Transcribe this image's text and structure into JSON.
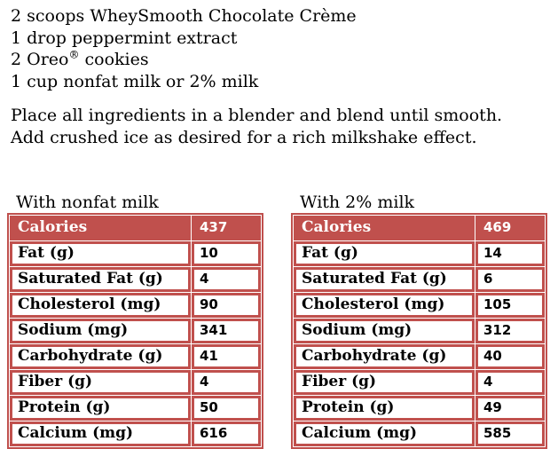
{
  "recipe": {
    "ingredients": [
      "2 scoops WheySmooth Chocolate Crème",
      "1 drop peppermint extract",
      {
        "pre": "2 Oreo",
        "sup": "®",
        "post": " cookies"
      },
      "1 cup nonfat milk or 2% milk"
    ],
    "instructions": [
      "Place all ingredients in a blender and blend until smooth.",
      "Add crushed ice as desired for a rich milkshake effect."
    ]
  },
  "tables": [
    {
      "title": "With nonfat milk",
      "header": {
        "label": "Calories",
        "value": "437"
      },
      "rows": [
        {
          "label": "Fat (g)",
          "value": "10"
        },
        {
          "label": "Saturated Fat (g)",
          "value": "4"
        },
        {
          "label": "Cholesterol (mg)",
          "value": "90"
        },
        {
          "label": "Sodium (mg)",
          "value": "341"
        },
        {
          "label": "Carbohydrate (g)",
          "value": "41"
        },
        {
          "label": "Fiber (g)",
          "value": "4"
        },
        {
          "label": "Protein (g)",
          "value": "50"
        },
        {
          "label": "Calcium (mg)",
          "value": "616"
        }
      ]
    },
    {
      "title": "With 2% milk",
      "header": {
        "label": "Calories",
        "value": "469"
      },
      "rows": [
        {
          "label": "Fat (g)",
          "value": "14"
        },
        {
          "label": "Saturated Fat (g)",
          "value": "6"
        },
        {
          "label": "Cholesterol (mg)",
          "value": "105"
        },
        {
          "label": "Sodium (mg)",
          "value": "312"
        },
        {
          "label": "Carbohydrate (g)",
          "value": "40"
        },
        {
          "label": "Fiber (g)",
          "value": "4"
        },
        {
          "label": "Protein (g)",
          "value": "49"
        },
        {
          "label": "Calcium (mg)",
          "value": "585"
        }
      ]
    }
  ],
  "colors": {
    "table_accent": "#C0504D",
    "header_text": "#FFFFFF",
    "body_text": "#000000"
  }
}
